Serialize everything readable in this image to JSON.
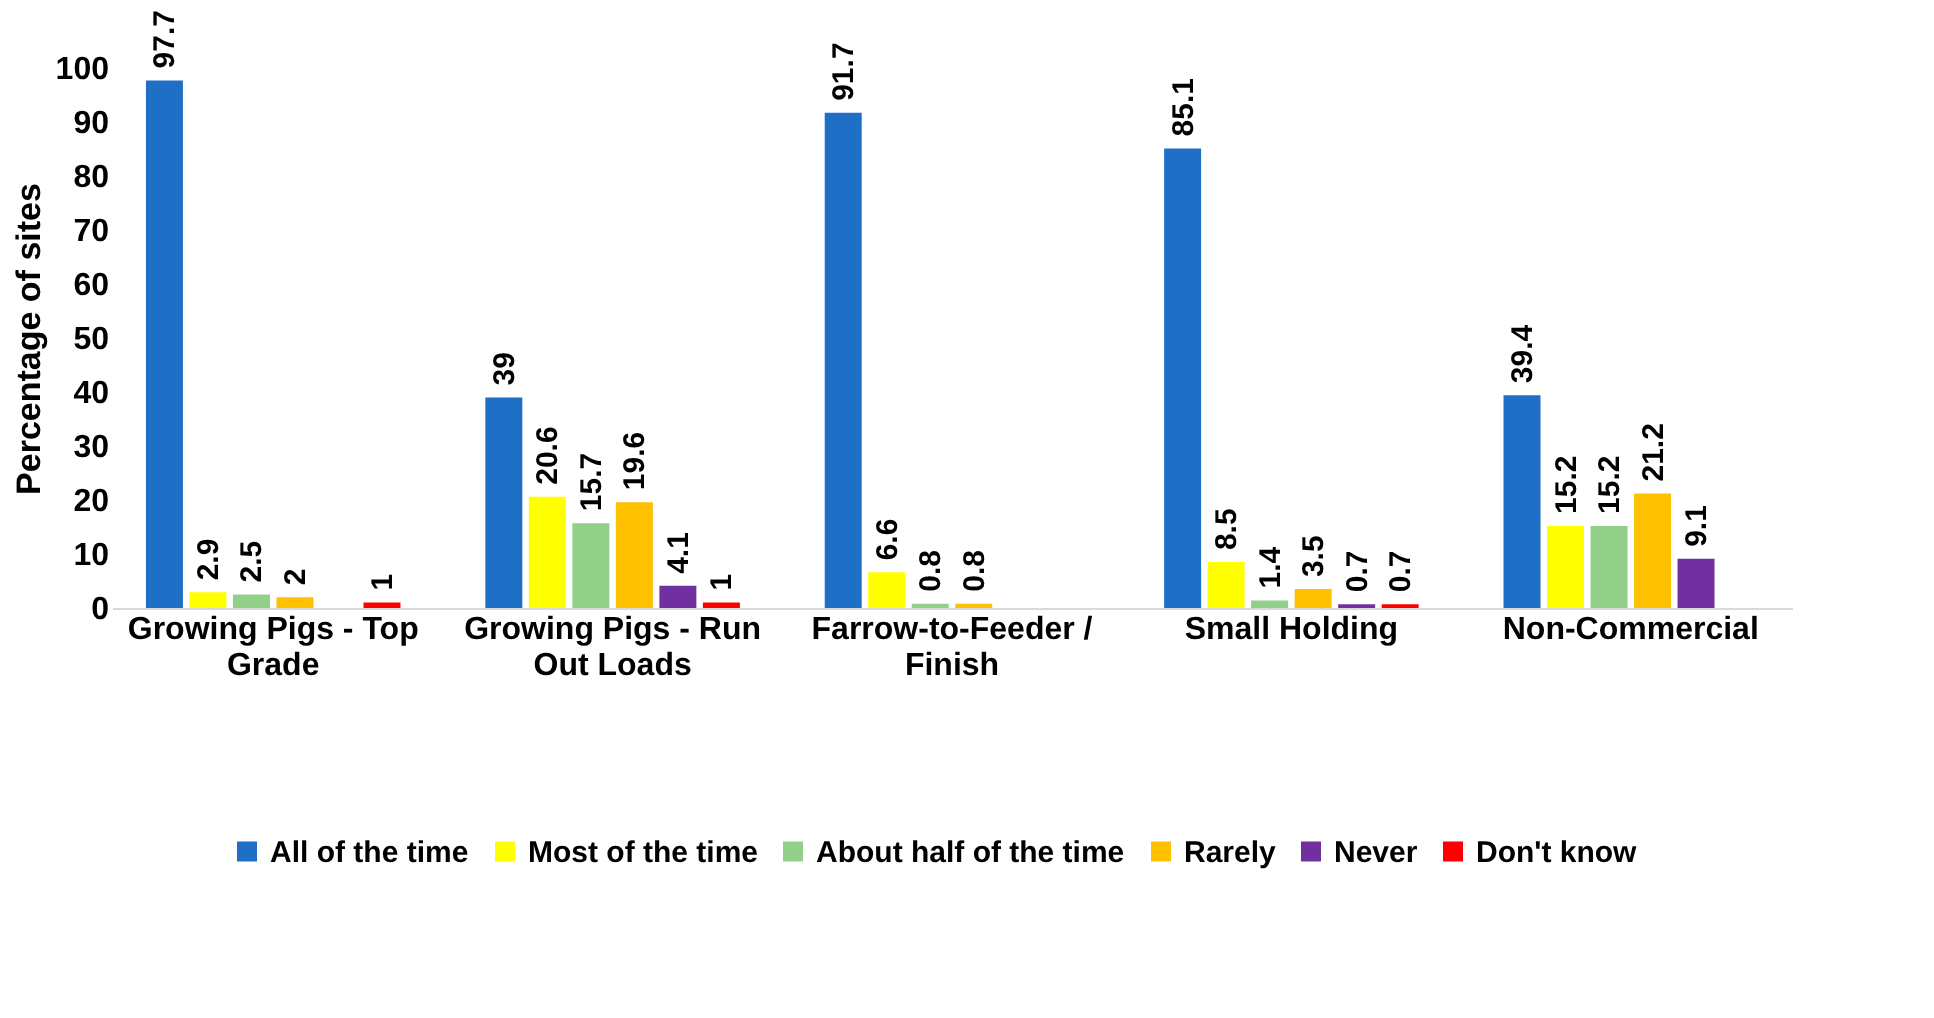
{
  "chart_data": {
    "type": "bar",
    "ylabel": "Percentage of sites",
    "categories": [
      "Growing Pigs - Top Grade",
      "Growing Pigs - Run Out Loads",
      "Farrow-to-Feeder / Finish",
      "Small Holding",
      "Non-Commercial"
    ],
    "series": [
      {
        "name": "All of the time",
        "color": "#1f6fc6",
        "values": [
          97.7,
          39,
          91.7,
          85.1,
          39.4
        ]
      },
      {
        "name": "Most of the time",
        "color": "#ffff00",
        "values": [
          2.9,
          20.6,
          6.6,
          8.5,
          15.2
        ]
      },
      {
        "name": "About half of the time",
        "color": "#92d08a",
        "values": [
          2.5,
          15.7,
          0.8,
          1.4,
          15.2
        ]
      },
      {
        "name": "Rarely",
        "color": "#ffc000",
        "values": [
          2,
          19.6,
          0.8,
          3.5,
          21.2
        ]
      },
      {
        "name": "Never",
        "color": "#7030a0",
        "values": [
          null,
          4.1,
          null,
          0.7,
          9.1
        ]
      },
      {
        "name": "Don't know",
        "color": "#ff0000",
        "values": [
          1,
          1,
          null,
          0.7,
          null
        ]
      }
    ],
    "ylim": [
      0,
      100
    ],
    "yticks": [
      0,
      10,
      20,
      30,
      40,
      50,
      60,
      70,
      80,
      90,
      100
    ],
    "data_labels": true,
    "grid": false,
    "legend": "bottom"
  }
}
